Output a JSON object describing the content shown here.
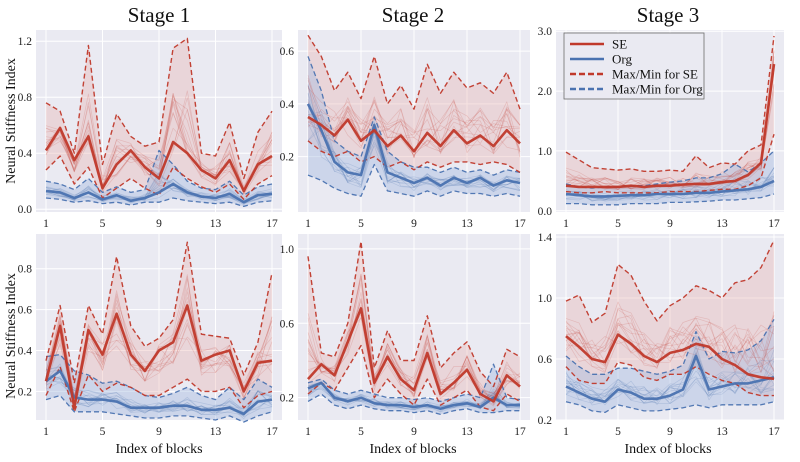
{
  "figure": {
    "titles": [
      "Stage 1",
      "Stage 2",
      "Stage 3"
    ],
    "ylabel": "Neural Stiffness Index",
    "xlabel": "Index of blocks",
    "legend": [
      {
        "label": "SE",
        "style": "solid",
        "color": "#c0392b"
      },
      {
        "label": "Org",
        "style": "solid",
        "color": "#4a72b0"
      },
      {
        "label": "Max/Min for SE",
        "style": "dashed",
        "color": "#c0392b"
      },
      {
        "label": "Max/Min for Org",
        "style": "dashed",
        "color": "#4a72b0"
      }
    ],
    "colors": {
      "se": "#c0392b",
      "org": "#4a72b0",
      "se_band": "#e8b4b0",
      "org_band": "#a9bde0",
      "panel_bg": "#eaeaf2"
    }
  },
  "chart_data": [
    {
      "type": "line",
      "stage": "Stage 1",
      "row": 1,
      "legend": false,
      "x": [
        1,
        2,
        3,
        4,
        5,
        6,
        7,
        8,
        9,
        10,
        11,
        12,
        13,
        14,
        15,
        16,
        17
      ],
      "xticks": [
        "1",
        "5",
        "9",
        "13",
        "17"
      ],
      "xtick_values": [
        1,
        5,
        9,
        13,
        17
      ],
      "ylim": [
        -0.02,
        1.28
      ],
      "yticks": [
        "0.0",
        "0.4",
        "0.8",
        "1.2"
      ],
      "ytick_values": [
        0.0,
        0.4,
        0.8,
        1.2
      ],
      "series": [
        {
          "name": "SE",
          "values": [
            0.42,
            0.58,
            0.35,
            0.52,
            0.15,
            0.32,
            0.42,
            0.3,
            0.22,
            0.48,
            0.4,
            0.28,
            0.22,
            0.35,
            0.13,
            0.32,
            0.38
          ]
        },
        {
          "name": "Org",
          "values": [
            0.13,
            0.12,
            0.08,
            0.12,
            0.07,
            0.1,
            0.06,
            0.08,
            0.12,
            0.18,
            0.12,
            0.09,
            0.08,
            0.11,
            0.05,
            0.1,
            0.11
          ]
        },
        {
          "name": "Max/Min for SE",
          "role": "max",
          "values": [
            0.76,
            0.7,
            0.4,
            1.17,
            0.32,
            0.68,
            0.52,
            0.45,
            0.48,
            1.15,
            1.22,
            0.4,
            0.38,
            0.62,
            0.22,
            0.55,
            0.7
          ]
        },
        {
          "name": "Max/Min for SE",
          "role": "min",
          "values": [
            0.28,
            0.38,
            0.18,
            0.3,
            0.08,
            0.15,
            0.22,
            0.15,
            0.1,
            0.3,
            0.22,
            0.16,
            0.12,
            0.18,
            0.07,
            0.18,
            0.24
          ]
        },
        {
          "name": "Max/Min for Org",
          "role": "max",
          "values": [
            0.2,
            0.18,
            0.14,
            0.22,
            0.12,
            0.16,
            0.12,
            0.14,
            0.42,
            0.32,
            0.2,
            0.15,
            0.14,
            0.2,
            0.1,
            0.16,
            0.18
          ]
        },
        {
          "name": "Max/Min for Org",
          "role": "min",
          "values": [
            0.08,
            0.07,
            0.05,
            0.06,
            0.04,
            0.05,
            0.03,
            0.05,
            0.05,
            0.08,
            0.06,
            0.05,
            0.04,
            0.05,
            0.02,
            0.05,
            0.06
          ]
        }
      ]
    },
    {
      "type": "line",
      "stage": "Stage 2",
      "row": 1,
      "legend": false,
      "x": [
        1,
        2,
        3,
        4,
        5,
        6,
        7,
        8,
        9,
        10,
        11,
        12,
        13,
        14,
        15,
        16,
        17
      ],
      "xticks": [
        "1",
        "5",
        "9",
        "13",
        "17"
      ],
      "xtick_values": [
        1,
        5,
        9,
        13,
        17
      ],
      "ylim": [
        -0.01,
        0.68
      ],
      "yticks": [
        "0.2",
        "0.4",
        "0.6"
      ],
      "ytick_values": [
        0.2,
        0.4,
        0.6
      ],
      "series": [
        {
          "name": "SE",
          "values": [
            0.35,
            0.32,
            0.28,
            0.34,
            0.26,
            0.3,
            0.24,
            0.28,
            0.22,
            0.29,
            0.24,
            0.3,
            0.25,
            0.28,
            0.24,
            0.3,
            0.25
          ]
        },
        {
          "name": "Org",
          "values": [
            0.4,
            0.3,
            0.18,
            0.14,
            0.13,
            0.32,
            0.14,
            0.12,
            0.1,
            0.12,
            0.09,
            0.12,
            0.1,
            0.12,
            0.09,
            0.11,
            0.1
          ]
        },
        {
          "name": "Max/Min for SE",
          "role": "max",
          "values": [
            0.66,
            0.58,
            0.45,
            0.52,
            0.42,
            0.58,
            0.4,
            0.47,
            0.38,
            0.55,
            0.44,
            0.52,
            0.46,
            0.48,
            0.44,
            0.52,
            0.38
          ]
        },
        {
          "name": "Max/Min for SE",
          "role": "min",
          "values": [
            0.26,
            0.22,
            0.2,
            0.22,
            0.18,
            0.2,
            0.16,
            0.18,
            0.15,
            0.18,
            0.16,
            0.18,
            0.18,
            0.17,
            0.18,
            0.17,
            0.14
          ]
        },
        {
          "name": "Max/Min for Org",
          "role": "max",
          "values": [
            0.58,
            0.45,
            0.26,
            0.22,
            0.2,
            0.35,
            0.22,
            0.18,
            0.16,
            0.16,
            0.14,
            0.16,
            0.14,
            0.15,
            0.13,
            0.15,
            0.14
          ]
        },
        {
          "name": "Max/Min for Org",
          "role": "min",
          "values": [
            0.13,
            0.11,
            0.08,
            0.06,
            0.05,
            0.17,
            0.07,
            0.06,
            0.05,
            0.07,
            0.05,
            0.07,
            0.06,
            0.06,
            0.05,
            0.06,
            0.05
          ]
        }
      ]
    },
    {
      "type": "line",
      "stage": "Stage 3",
      "row": 1,
      "legend": true,
      "legend_position": "top-left",
      "x": [
        1,
        2,
        3,
        4,
        5,
        6,
        7,
        8,
        9,
        10,
        11,
        12,
        13,
        14,
        15,
        16,
        17
      ],
      "xticks": [
        "1",
        "5",
        "9",
        "13",
        "17"
      ],
      "xtick_values": [
        1,
        5,
        9,
        13,
        17
      ],
      "ylim": [
        -0.02,
        3.02
      ],
      "yticks": [
        "0.0",
        "1.0",
        "2.0",
        "3.0"
      ],
      "ytick_values": [
        0.0,
        1.0,
        2.0,
        3.0
      ],
      "series": [
        {
          "name": "SE",
          "values": [
            0.42,
            0.4,
            0.4,
            0.4,
            0.4,
            0.42,
            0.4,
            0.42,
            0.42,
            0.44,
            0.45,
            0.45,
            0.48,
            0.5,
            0.6,
            0.8,
            2.45
          ]
        },
        {
          "name": "Org",
          "values": [
            0.28,
            0.26,
            0.24,
            0.24,
            0.25,
            0.26,
            0.26,
            0.28,
            0.28,
            0.28,
            0.3,
            0.3,
            0.32,
            0.34,
            0.36,
            0.4,
            0.5
          ]
        },
        {
          "name": "Max/Min for SE",
          "role": "max",
          "values": [
            0.98,
            0.85,
            0.72,
            0.7,
            0.68,
            0.7,
            0.66,
            0.66,
            0.68,
            0.66,
            0.92,
            0.72,
            0.8,
            0.78,
            1.0,
            1.1,
            2.92
          ]
        },
        {
          "name": "Max/Min for SE",
          "role": "min",
          "values": [
            0.32,
            0.3,
            0.3,
            0.32,
            0.3,
            0.3,
            0.3,
            0.3,
            0.32,
            0.32,
            0.32,
            0.34,
            0.36,
            0.36,
            0.42,
            0.55,
            1.28
          ]
        },
        {
          "name": "Max/Min for Org",
          "role": "max",
          "values": [
            0.45,
            0.4,
            0.38,
            0.4,
            0.4,
            0.42,
            0.42,
            0.45,
            0.48,
            0.5,
            0.55,
            0.55,
            0.62,
            0.78,
            0.65,
            0.8,
            1.0
          ]
        },
        {
          "name": "Max/Min for Org",
          "role": "min",
          "values": [
            0.12,
            0.12,
            0.1,
            0.1,
            0.1,
            0.12,
            0.12,
            0.12,
            0.14,
            0.14,
            0.15,
            0.16,
            0.18,
            0.18,
            0.2,
            0.22,
            0.28
          ]
        }
      ]
    },
    {
      "type": "line",
      "stage": "Stage 1",
      "row": 2,
      "legend": false,
      "x": [
        1,
        2,
        3,
        4,
        5,
        6,
        7,
        8,
        9,
        10,
        11,
        12,
        13,
        14,
        15,
        16,
        17
      ],
      "xticks": [
        "1",
        "5",
        "9",
        "13",
        "17"
      ],
      "xtick_values": [
        1,
        5,
        9,
        13,
        17
      ],
      "ylim": [
        0.06,
        0.97
      ],
      "yticks": [
        "0.2",
        "0.4",
        "0.6",
        "0.8"
      ],
      "ytick_values": [
        0.2,
        0.4,
        0.6,
        0.8
      ],
      "series": [
        {
          "name": "SE",
          "values": [
            0.25,
            0.52,
            0.12,
            0.5,
            0.38,
            0.58,
            0.38,
            0.3,
            0.4,
            0.44,
            0.62,
            0.35,
            0.38,
            0.4,
            0.2,
            0.34,
            0.35
          ]
        },
        {
          "name": "Org",
          "values": [
            0.25,
            0.3,
            0.17,
            0.16,
            0.16,
            0.15,
            0.12,
            0.12,
            0.12,
            0.13,
            0.13,
            0.11,
            0.11,
            0.12,
            0.09,
            0.15,
            0.16
          ]
        },
        {
          "name": "Max/Min for SE",
          "role": "max",
          "values": [
            0.35,
            0.62,
            0.24,
            0.62,
            0.48,
            0.86,
            0.52,
            0.42,
            0.46,
            0.55,
            0.93,
            0.48,
            0.47,
            0.46,
            0.28,
            0.44,
            0.78
          ]
        },
        {
          "name": "Max/Min for SE",
          "role": "min",
          "values": [
            0.18,
            0.32,
            0.1,
            0.28,
            0.2,
            0.24,
            0.22,
            0.18,
            0.18,
            0.22,
            0.26,
            0.2,
            0.2,
            0.22,
            0.12,
            0.18,
            0.2
          ]
        },
        {
          "name": "Max/Min for Org",
          "role": "max",
          "values": [
            0.37,
            0.38,
            0.3,
            0.28,
            0.24,
            0.25,
            0.22,
            0.18,
            0.17,
            0.19,
            0.22,
            0.18,
            0.16,
            0.22,
            0.16,
            0.26,
            0.22
          ]
        },
        {
          "name": "Max/Min for Org",
          "role": "min",
          "values": [
            0.16,
            0.18,
            0.1,
            0.1,
            0.1,
            0.09,
            0.08,
            0.07,
            0.07,
            0.08,
            0.08,
            0.07,
            0.06,
            0.08,
            0.05,
            0.08,
            0.1
          ]
        }
      ]
    },
    {
      "type": "line",
      "stage": "Stage 2",
      "row": 2,
      "legend": false,
      "x": [
        1,
        2,
        3,
        4,
        5,
        6,
        7,
        8,
        9,
        10,
        11,
        12,
        13,
        14,
        15,
        16,
        17
      ],
      "xticks": [
        "1",
        "5",
        "9",
        "13",
        "17"
      ],
      "xtick_values": [
        1,
        5,
        9,
        13,
        17
      ],
      "ylim": [
        0.08,
        1.08
      ],
      "yticks": [
        "0.2",
        "0.6",
        "1.0"
      ],
      "ytick_values": [
        0.2,
        0.6,
        1.0
      ],
      "series": [
        {
          "name": "SE",
          "values": [
            0.3,
            0.38,
            0.32,
            0.5,
            0.68,
            0.28,
            0.42,
            0.3,
            0.24,
            0.44,
            0.22,
            0.28,
            0.35,
            0.22,
            0.18,
            0.32,
            0.26
          ]
        },
        {
          "name": "Org",
          "values": [
            0.25,
            0.28,
            0.2,
            0.18,
            0.2,
            0.17,
            0.16,
            0.16,
            0.15,
            0.16,
            0.14,
            0.16,
            0.17,
            0.15,
            0.2,
            0.16,
            0.16
          ]
        },
        {
          "name": "Max/Min for SE",
          "role": "max",
          "values": [
            0.96,
            0.44,
            0.42,
            0.6,
            1.04,
            0.36,
            0.56,
            0.4,
            0.4,
            0.64,
            0.36,
            0.44,
            0.5,
            0.34,
            0.26,
            0.46,
            0.42
          ]
        },
        {
          "name": "Max/Min for SE",
          "role": "min",
          "values": [
            0.22,
            0.28,
            0.24,
            0.36,
            0.48,
            0.2,
            0.3,
            0.22,
            0.16,
            0.3,
            0.16,
            0.2,
            0.24,
            0.15,
            0.13,
            0.22,
            0.18
          ]
        },
        {
          "name": "Max/Min for Org",
          "role": "max",
          "values": [
            0.28,
            0.3,
            0.24,
            0.22,
            0.24,
            0.22,
            0.2,
            0.2,
            0.19,
            0.2,
            0.18,
            0.2,
            0.22,
            0.2,
            0.38,
            0.2,
            0.19
          ]
        },
        {
          "name": "Max/Min for Org",
          "role": "min",
          "values": [
            0.18,
            0.22,
            0.16,
            0.14,
            0.16,
            0.14,
            0.13,
            0.13,
            0.12,
            0.13,
            0.11,
            0.13,
            0.14,
            0.12,
            0.12,
            0.13,
            0.13
          ]
        }
      ]
    },
    {
      "type": "line",
      "stage": "Stage 3",
      "row": 2,
      "legend": false,
      "x": [
        1,
        2,
        3,
        4,
        5,
        6,
        7,
        8,
        9,
        10,
        11,
        12,
        13,
        14,
        15,
        16,
        17
      ],
      "xticks": [
        "1",
        "5",
        "9",
        "13",
        "17"
      ],
      "xtick_values": [
        1,
        5,
        9,
        13,
        17
      ],
      "ylim": [
        0.2,
        1.42
      ],
      "yticks": [
        "0.2",
        "0.6",
        "1.0",
        "1.4"
      ],
      "ytick_values": [
        0.2,
        0.6,
        1.0,
        1.4
      ],
      "series": [
        {
          "name": "SE",
          "values": [
            0.75,
            0.68,
            0.6,
            0.58,
            0.76,
            0.7,
            0.62,
            0.58,
            0.64,
            0.66,
            0.7,
            0.68,
            0.6,
            0.56,
            0.5,
            0.48,
            0.47
          ]
        },
        {
          "name": "Org",
          "values": [
            0.42,
            0.38,
            0.34,
            0.32,
            0.4,
            0.38,
            0.34,
            0.34,
            0.36,
            0.4,
            0.62,
            0.4,
            0.42,
            0.44,
            0.44,
            0.46,
            0.48
          ]
        },
        {
          "name": "Max/Min for SE",
          "role": "max",
          "values": [
            0.98,
            1.02,
            0.84,
            0.9,
            1.22,
            1.15,
            0.98,
            0.85,
            0.95,
            1.0,
            1.08,
            1.05,
            1.0,
            1.1,
            1.12,
            1.2,
            1.38
          ]
        },
        {
          "name": "Max/Min for SE",
          "role": "min",
          "values": [
            0.55,
            0.46,
            0.44,
            0.44,
            0.58,
            0.56,
            0.48,
            0.46,
            0.5,
            0.5,
            0.55,
            0.5,
            0.46,
            0.44,
            0.38,
            0.36,
            0.36
          ]
        },
        {
          "name": "Max/Min for Org",
          "role": "max",
          "values": [
            0.62,
            0.55,
            0.5,
            0.5,
            0.54,
            0.54,
            0.52,
            0.5,
            0.52,
            0.56,
            0.78,
            0.6,
            0.65,
            0.64,
            0.66,
            0.72,
            0.86
          ]
        },
        {
          "name": "Max/Min for Org",
          "role": "min",
          "values": [
            0.32,
            0.3,
            0.26,
            0.25,
            0.3,
            0.28,
            0.26,
            0.26,
            0.27,
            0.28,
            0.3,
            0.28,
            0.3,
            0.3,
            0.3,
            0.3,
            0.32
          ]
        }
      ]
    }
  ]
}
